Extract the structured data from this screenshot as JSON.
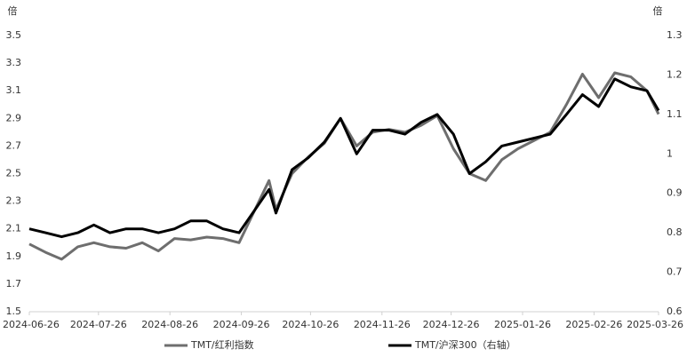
{
  "chart_data": {
    "type": "line",
    "y_label": "倍",
    "y2_label": "倍",
    "x": [
      "2024-06-26",
      "2024-07-03",
      "2024-07-10",
      "2024-07-17",
      "2024-07-24",
      "2024-07-31",
      "2024-08-07",
      "2024-08-14",
      "2024-08-21",
      "2024-08-28",
      "2024-09-04",
      "2024-09-11",
      "2024-09-18",
      "2024-09-25",
      "2024-10-08",
      "2024-10-11",
      "2024-10-18",
      "2024-10-25",
      "2024-11-01",
      "2024-11-08",
      "2024-11-15",
      "2024-11-22",
      "2024-11-29",
      "2024-12-06",
      "2024-12-13",
      "2024-12-20",
      "2024-12-27",
      "2025-01-03",
      "2025-01-10",
      "2025-01-17",
      "2025-01-24",
      "2025-02-07",
      "2025-02-14",
      "2025-02-21",
      "2025-02-28",
      "2025-03-07",
      "2025-03-14",
      "2025-03-21",
      "2025-03-26"
    ],
    "series": [
      {
        "name": "TMT/红利指数",
        "color": "#6e6e6e",
        "values": [
          1.99,
          1.93,
          1.88,
          1.97,
          2.0,
          1.97,
          1.96,
          2.0,
          1.94,
          2.03,
          2.02,
          2.04,
          2.03,
          2.0,
          2.45,
          2.24,
          2.5,
          2.62,
          2.72,
          2.9,
          2.7,
          2.8,
          2.82,
          2.8,
          2.85,
          2.92,
          2.68,
          2.5,
          2.45,
          2.6,
          2.68,
          2.8,
          3.0,
          3.22,
          3.05,
          3.23,
          3.2,
          3.1,
          2.93
        ]
      },
      {
        "name": "TMT/沪深300（右轴）",
        "color": "#000000",
        "axis": "y2",
        "values": [
          0.81,
          0.8,
          0.79,
          0.8,
          0.82,
          0.8,
          0.81,
          0.81,
          0.8,
          0.81,
          0.83,
          0.83,
          0.81,
          0.8,
          0.91,
          0.85,
          0.96,
          0.99,
          1.03,
          1.09,
          1.0,
          1.06,
          1.06,
          1.05,
          1.08,
          1.1,
          1.05,
          0.95,
          0.98,
          1.02,
          1.03,
          1.05,
          1.1,
          1.15,
          1.12,
          1.19,
          1.17,
          1.16,
          1.11
        ]
      }
    ],
    "xlim": [
      "2024-06-26",
      "2025-03-26"
    ],
    "xticks": [
      "2024-06-26",
      "2024-07-26",
      "2024-08-26",
      "2024-09-26",
      "2024-10-26",
      "2024-11-26",
      "2024-12-26",
      "2025-01-26",
      "2025-02-26",
      "2025-03-26"
    ],
    "ylim": [
      1.5,
      3.5
    ],
    "yticks": [
      1.5,
      1.7,
      1.9,
      2.1,
      2.3,
      2.5,
      2.7,
      2.9,
      3.1,
      3.3,
      3.5
    ],
    "y2lim": [
      0.6,
      1.3
    ],
    "y2ticks": [
      0.6,
      0.7,
      0.8,
      0.9,
      1,
      1.1,
      1.2,
      1.3
    ],
    "grid": false,
    "legend": "bottom"
  }
}
